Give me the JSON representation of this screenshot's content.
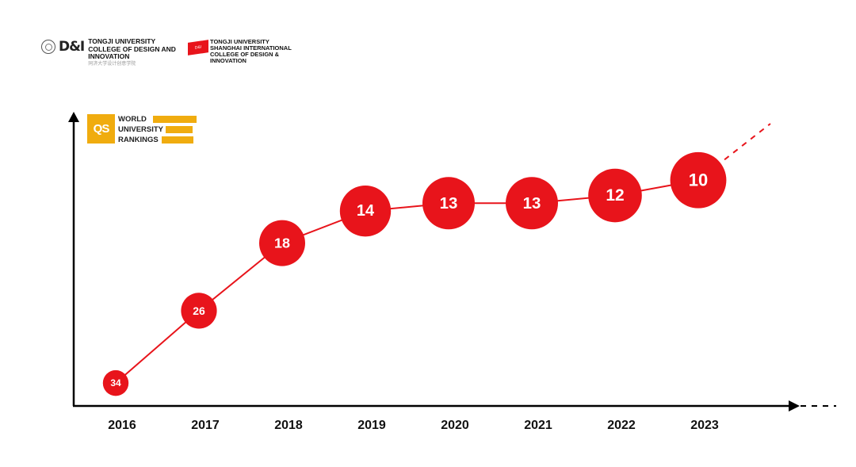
{
  "header": {
    "logo1": {
      "mark": "D&I",
      "lines": [
        "TONGJI UNIVERSITY",
        "COLLEGE OF DESIGN AND",
        "INNOVATION"
      ],
      "chinese": "同济大学设计创意学院"
    },
    "logo2": {
      "flag": "D&I Shanghai",
      "lines": [
        "TONGJI UNIVERSITY",
        "SHANGHAI INTERNATIONAL",
        "COLLEGE OF DESIGN &",
        "INNOVATION"
      ]
    }
  },
  "qs_logo": {
    "mark": "QS",
    "lines": [
      "WORLD",
      "UNIVERSITY",
      "RANKINGS"
    ],
    "color": "#f0ac0f"
  },
  "chart_data": {
    "type": "line",
    "title": "",
    "xlabel": "",
    "ylabel": "",
    "categories": [
      "2016",
      "2017",
      "2018",
      "2019",
      "2020",
      "2021",
      "2022",
      "2023"
    ],
    "series": [
      {
        "values": [
          34,
          26,
          18,
          14,
          13,
          13,
          12,
          10
        ]
      }
    ],
    "y_inverted": true,
    "grid": false,
    "trend_continues": "dashed",
    "colors": {
      "series": "#e8141b",
      "axis": "#000000",
      "label": "#ffffff"
    }
  }
}
